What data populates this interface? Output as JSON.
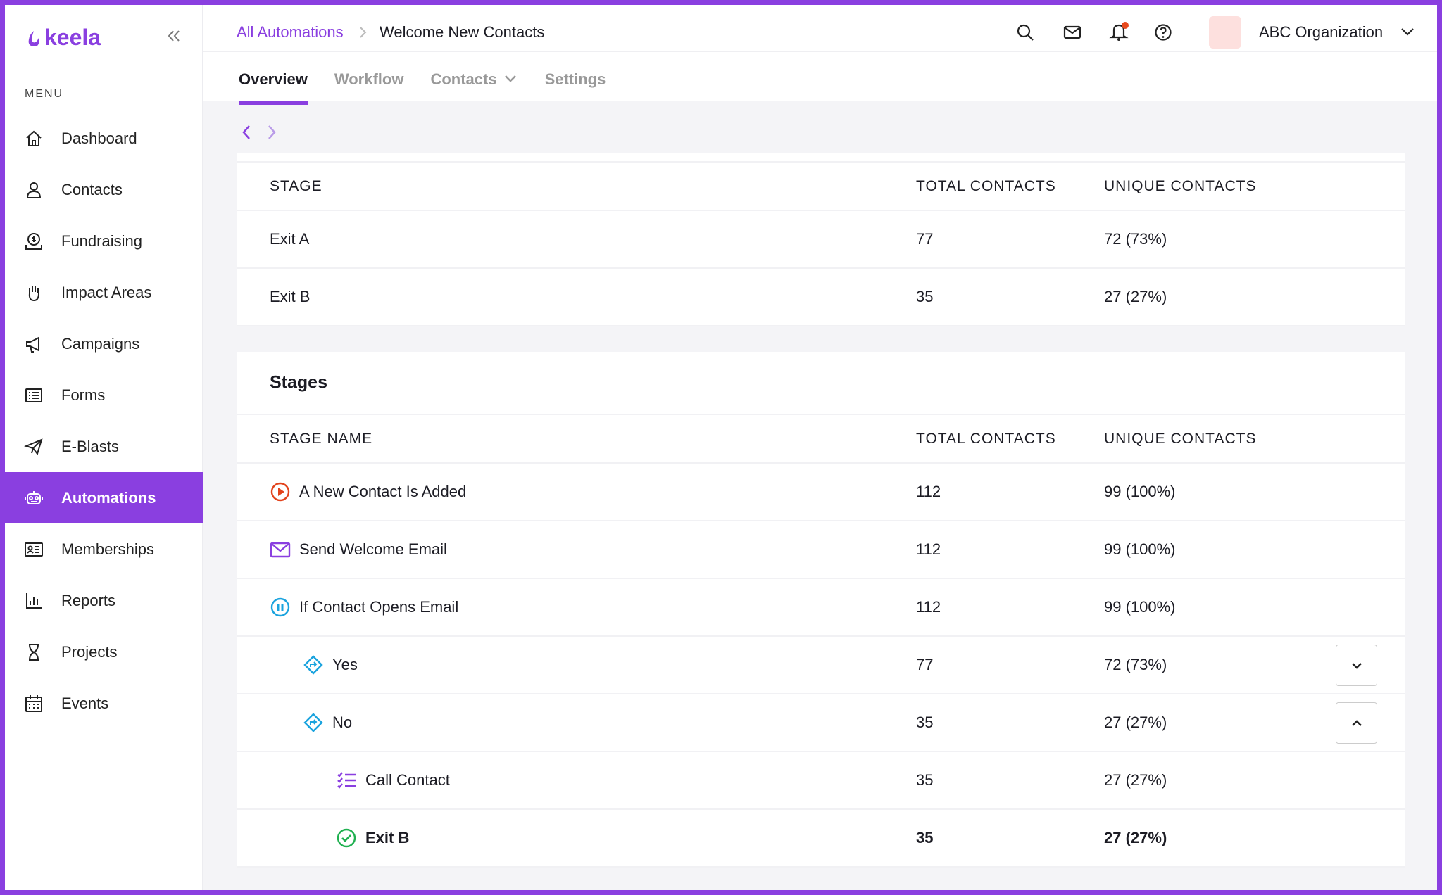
{
  "sidebar": {
    "logo": "keela",
    "menu_label": "MENU",
    "items": [
      "Dashboard",
      "Contacts",
      "Fundraising",
      "Impact Areas",
      "Campaigns",
      "Forms",
      "E-Blasts",
      "Automations",
      "Memberships",
      "Reports",
      "Projects",
      "Events"
    ]
  },
  "header": {
    "breadcrumb": [
      "All Automations",
      "Welcome New Contacts"
    ],
    "organization": "ABC Organization"
  },
  "tabs": [
    "Overview",
    "Workflow",
    "Contacts",
    "Settings"
  ],
  "exit_table": {
    "headers": [
      "STAGE",
      "TOTAL CONTACTS",
      "UNIQUE CONTACTS"
    ],
    "rows": [
      [
        "Exit A",
        77,
        "72 (73%)"
      ],
      [
        "Exit B",
        35,
        "27 (27%)"
      ]
    ]
  },
  "stages_table": {
    "title": "Stages",
    "headers": [
      "STAGE NAME",
      "TOTAL CONTACTS",
      "UNIQUE CONTACTS"
    ],
    "rows": [
      [
        "A New Contact Is Added",
        112,
        "99 (100%)"
      ],
      [
        "Send Welcome Email",
        112,
        "99 (100%)"
      ],
      [
        "If Contact Opens Email",
        112,
        "99 (100%)"
      ],
      [
        "Yes",
        77,
        "72 (73%)"
      ],
      [
        "No",
        35,
        "27 (27%)"
      ],
      [
        "Call Contact",
        35,
        "27 (27%)"
      ],
      [
        "Exit B",
        35,
        "27 (27%)"
      ]
    ]
  }
}
